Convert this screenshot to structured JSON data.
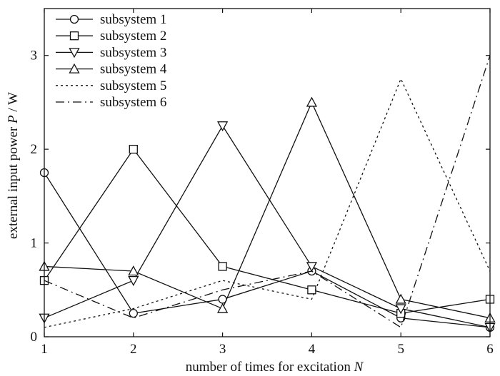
{
  "chart_data": {
    "type": "line",
    "xlabel": "number of times for excitation",
    "xlabel_var": "N",
    "ylabel": "external input power",
    "ylabel_var": "P",
    "ylabel_unit": " / W",
    "xlim": [
      1,
      6
    ],
    "ylim": [
      0,
      3.5
    ],
    "xticks": [
      1,
      2,
      3,
      4,
      5,
      6
    ],
    "yticks": [
      0,
      1,
      2,
      3
    ],
    "grid": false,
    "legend_position": "top-left",
    "x": [
      1,
      2,
      3,
      4,
      5,
      6
    ],
    "series": [
      {
        "name": "subsystem 1",
        "marker": "circle",
        "dash": "solid",
        "values": [
          1.75,
          0.25,
          0.4,
          0.7,
          0.2,
          0.1
        ]
      },
      {
        "name": "subsystem 2",
        "marker": "square",
        "dash": "solid",
        "values": [
          0.6,
          2.0,
          0.75,
          0.5,
          0.25,
          0.4
        ]
      },
      {
        "name": "subsystem 3",
        "marker": "triangle-down",
        "dash": "solid",
        "values": [
          0.2,
          0.6,
          2.25,
          0.75,
          0.3,
          0.1
        ]
      },
      {
        "name": "subsystem 4",
        "marker": "triangle-up",
        "dash": "solid",
        "values": [
          0.75,
          0.7,
          0.3,
          2.5,
          0.4,
          0.2
        ]
      },
      {
        "name": "subsystem 5",
        "marker": "none",
        "dash": "dotted",
        "values": [
          0.1,
          0.3,
          0.6,
          0.4,
          2.75,
          0.7
        ]
      },
      {
        "name": "subsystem 6",
        "marker": "none",
        "dash": "dashdot",
        "values": [
          0.6,
          0.2,
          0.5,
          0.7,
          0.1,
          3.0
        ]
      }
    ],
    "line_color": "#111111"
  }
}
